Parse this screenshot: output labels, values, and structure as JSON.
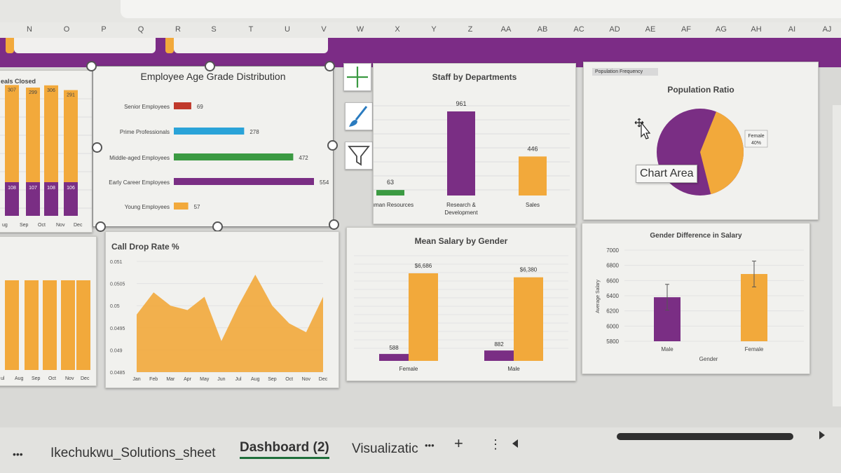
{
  "columns": [
    "N",
    "O",
    "P",
    "Q",
    "R",
    "S",
    "T",
    "U",
    "V",
    "W",
    "X",
    "Y",
    "Z",
    "AA",
    "AB",
    "AC",
    "AD",
    "AE",
    "AF",
    "AG",
    "AH",
    "AI",
    "AJ"
  ],
  "colors": {
    "purple": "#7a2e84",
    "orange": "#f2a93b",
    "blue": "#2aa3d8",
    "green": "#3b9a42",
    "red": "#c0392b"
  },
  "left_top": {
    "title": "eals Closed",
    "categories": [
      "ug",
      "Sep",
      "Oct",
      "Nov",
      "Dec"
    ],
    "top_values": [
      307,
      299,
      306,
      291
    ],
    "bottom_values": [
      108,
      107,
      108,
      106
    ]
  },
  "left_bottom": {
    "categories": [
      "ul",
      "Aug",
      "Sep",
      "Oct",
      "Nov",
      "Dec"
    ]
  },
  "age_chart": {
    "title": "Employee Age Grade Distribution",
    "categories": [
      "Senior Employees",
      "Prime Professionals",
      "Middle-aged Employees",
      "Early Career Employees",
      "Young Employees"
    ],
    "values": [
      69,
      278,
      472,
      554,
      57
    ],
    "value_labels": [
      "69",
      "278",
      "472",
      "554",
      "57"
    ]
  },
  "dept_chart": {
    "title": "Staff by Departments",
    "categories": [
      "Human Resources",
      "Research &",
      "Sales"
    ],
    "category_line2": [
      "",
      "Development",
      ""
    ],
    "values": [
      63,
      961,
      446
    ],
    "value_labels": [
      "63",
      "961",
      "446"
    ]
  },
  "pop_chart": {
    "tag": "Population Frequency",
    "title": "Population Ratio",
    "female_pct": 40,
    "callout_line1": "Female",
    "callout_line2": "40%",
    "tooltip": "Chart Area"
  },
  "drop_chart": {
    "title": "Call Drop Rate %",
    "months": [
      "Jan",
      "Feb",
      "Mar",
      "Apr",
      "May",
      "Jun",
      "Jul",
      "Aug",
      "Sep",
      "Oct",
      "Nov",
      "Dec"
    ],
    "values": [
      0.0498,
      0.0503,
      0.05,
      0.0499,
      0.0502,
      0.0492,
      0.05,
      0.0507,
      0.05,
      0.0496,
      0.0494,
      0.0502
    ],
    "yticks": [
      "0.051",
      "0.0505",
      "0.05",
      "0.0495",
      "0.049",
      "0.0485"
    ]
  },
  "salary_chart": {
    "title": "Mean Salary by Gender",
    "categories": [
      "Female",
      "Male"
    ],
    "count_values": [
      588,
      882
    ],
    "salary_values": [
      6686,
      6380
    ],
    "salary_labels": [
      "$6,686",
      "$6,380"
    ],
    "count_labels": [
      "588",
      "882"
    ]
  },
  "gender_chart": {
    "title": "Gender Difference in Salary",
    "categories": [
      "Male",
      "Female"
    ],
    "values": [
      6380,
      6686
    ],
    "yticks": [
      "7000",
      "6800",
      "6600",
      "6400",
      "6200",
      "6000",
      "5800"
    ],
    "ylabel": "Average Salary",
    "xlabel": "Gender"
  },
  "tabs": {
    "more": "•••",
    "sheet1": "Ikechukwu_Solutions_sheet",
    "sheet2": "Dashboard (2)",
    "sheet3": "Visualizatic",
    "more2": "•••",
    "add": "+",
    "menu": "⋮"
  }
}
